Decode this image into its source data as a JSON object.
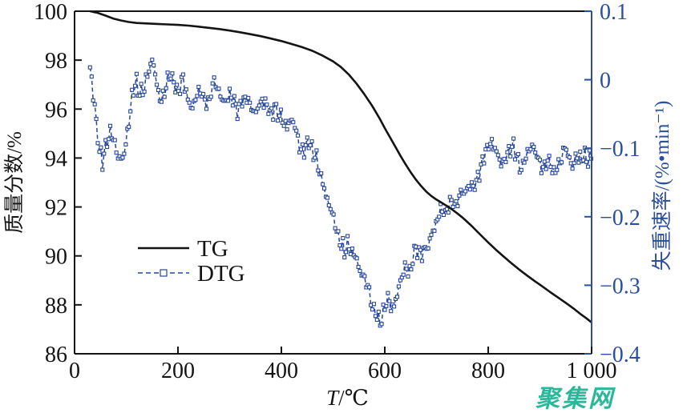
{
  "watermark": {
    "text": "聚集网",
    "color": "#2ab89b"
  },
  "colors": {
    "background": "#ffffff",
    "axis_black": "#141414",
    "axis_blue": "#2b4f9e",
    "tg_line": "#141414",
    "dtg_line": "#27479b",
    "dtg_marker_fill": "#ffffff"
  },
  "legend": {
    "entries": [
      {
        "label": "TG",
        "series": "tg"
      },
      {
        "label": "DTG",
        "series": "dtg"
      }
    ]
  },
  "chart_data": {
    "type": "line",
    "title": "",
    "xlabel_italic": "T",
    "xlabel_rest": "/℃",
    "ylabel_left": "质量分数/%",
    "ylabel_right": "失重速率/(%•min⁻¹)",
    "grid": false,
    "legend_position": "inside lower-left",
    "xlim": [
      0,
      1000
    ],
    "ylim_left": [
      86,
      100
    ],
    "ylim_right": [
      -0.4,
      0.1
    ],
    "x_ticks": {
      "values": [
        0,
        200,
        400,
        600,
        800,
        1000
      ],
      "labels": [
        "0",
        "200",
        "400",
        "600",
        "800",
        "1 000"
      ]
    },
    "left_ticks": {
      "values": [
        100,
        98,
        96,
        94,
        92,
        90,
        88,
        86
      ],
      "labels": [
        "100",
        "98",
        "96",
        "94",
        "92",
        "90",
        "88",
        "86"
      ]
    },
    "right_ticks": {
      "values": [
        0.1,
        0,
        -0.1,
        -0.2,
        -0.3,
        -0.4
      ],
      "labels": [
        "0.1",
        "0",
        "−0.1",
        "−0.2",
        "−0.3",
        "−0.4"
      ]
    },
    "series": [
      {
        "name": "TG",
        "axis": "left",
        "style": "solid",
        "unit": "%",
        "points": [
          [
            30,
            100
          ],
          [
            45,
            99.93
          ],
          [
            60,
            99.82
          ],
          [
            75,
            99.7
          ],
          [
            90,
            99.62
          ],
          [
            105,
            99.56
          ],
          [
            120,
            99.52
          ],
          [
            140,
            99.5
          ],
          [
            160,
            99.48
          ],
          [
            180,
            99.46
          ],
          [
            200,
            99.44
          ],
          [
            220,
            99.41
          ],
          [
            240,
            99.37
          ],
          [
            260,
            99.32
          ],
          [
            280,
            99.27
          ],
          [
            300,
            99.21
          ],
          [
            320,
            99.14
          ],
          [
            340,
            99.06
          ],
          [
            360,
            98.98
          ],
          [
            380,
            98.88
          ],
          [
            400,
            98.78
          ],
          [
            420,
            98.66
          ],
          [
            440,
            98.53
          ],
          [
            460,
            98.38
          ],
          [
            480,
            98.18
          ],
          [
            500,
            97.95
          ],
          [
            515,
            97.72
          ],
          [
            530,
            97.42
          ],
          [
            545,
            97.05
          ],
          [
            560,
            96.62
          ],
          [
            575,
            96.15
          ],
          [
            590,
            95.62
          ],
          [
            600,
            95.22
          ],
          [
            610,
            94.85
          ],
          [
            620,
            94.48
          ],
          [
            630,
            94.1
          ],
          [
            640,
            93.75
          ],
          [
            650,
            93.42
          ],
          [
            660,
            93.12
          ],
          [
            670,
            92.86
          ],
          [
            680,
            92.63
          ],
          [
            690,
            92.45
          ],
          [
            700,
            92.3
          ],
          [
            710,
            92.17
          ],
          [
            720,
            92.04
          ],
          [
            730,
            91.9
          ],
          [
            740,
            91.74
          ],
          [
            750,
            91.57
          ],
          [
            760,
            91.38
          ],
          [
            770,
            91.18
          ],
          [
            780,
            90.97
          ],
          [
            790,
            90.76
          ],
          [
            800,
            90.55
          ],
          [
            815,
            90.25
          ],
          [
            830,
            89.97
          ],
          [
            845,
            89.7
          ],
          [
            860,
            89.44
          ],
          [
            875,
            89.2
          ],
          [
            890,
            88.97
          ],
          [
            905,
            88.75
          ],
          [
            920,
            88.52
          ],
          [
            935,
            88.3
          ],
          [
            950,
            88.08
          ],
          [
            965,
            87.85
          ],
          [
            980,
            87.6
          ],
          [
            990,
            87.45
          ],
          [
            1000,
            87.28
          ]
        ]
      },
      {
        "name": "DTG",
        "axis": "right",
        "style": "dashed-square",
        "unit": "%/min",
        "noise_amplitude": 0.011,
        "noise_step": 3,
        "points": [
          [
            30,
            0.018
          ],
          [
            36,
            -0.02
          ],
          [
            42,
            -0.065
          ],
          [
            48,
            -0.105
          ],
          [
            54,
            -0.118
          ],
          [
            60,
            -0.1
          ],
          [
            66,
            -0.082
          ],
          [
            72,
            -0.079
          ],
          [
            78,
            -0.095
          ],
          [
            84,
            -0.113
          ],
          [
            90,
            -0.12
          ],
          [
            96,
            -0.108
          ],
          [
            102,
            -0.078
          ],
          [
            108,
            -0.042
          ],
          [
            114,
            -0.012
          ],
          [
            120,
            -0.002
          ],
          [
            126,
            -0.022
          ],
          [
            132,
            -0.015
          ],
          [
            138,
            0.0
          ],
          [
            144,
            0.015
          ],
          [
            150,
            0.028
          ],
          [
            156,
            0.008
          ],
          [
            162,
            -0.018
          ],
          [
            168,
            -0.032
          ],
          [
            174,
            -0.02
          ],
          [
            180,
            0.0
          ],
          [
            186,
            0.008
          ],
          [
            192,
            -0.005
          ],
          [
            198,
            -0.018
          ],
          [
            204,
            -0.015
          ],
          [
            210,
            0.002
          ],
          [
            216,
            -0.018
          ],
          [
            222,
            -0.035
          ],
          [
            228,
            -0.046
          ],
          [
            234,
            -0.03
          ],
          [
            240,
            -0.016
          ],
          [
            246,
            -0.022
          ],
          [
            252,
            -0.032
          ],
          [
            258,
            -0.038
          ],
          [
            264,
            -0.018
          ],
          [
            270,
            -0.002
          ],
          [
            276,
            -0.012
          ],
          [
            282,
            -0.022
          ],
          [
            288,
            -0.032
          ],
          [
            294,
            -0.028
          ],
          [
            300,
            -0.022
          ],
          [
            308,
            -0.035
          ],
          [
            316,
            -0.044
          ],
          [
            324,
            -0.03
          ],
          [
            332,
            -0.027
          ],
          [
            340,
            -0.035
          ],
          [
            348,
            -0.046
          ],
          [
            356,
            -0.035
          ],
          [
            364,
            -0.03
          ],
          [
            372,
            -0.04
          ],
          [
            380,
            -0.052
          ],
          [
            388,
            -0.044
          ],
          [
            396,
            -0.052
          ],
          [
            404,
            -0.062
          ],
          [
            412,
            -0.068
          ],
          [
            420,
            -0.058
          ],
          [
            428,
            -0.075
          ],
          [
            436,
            -0.098
          ],
          [
            444,
            -0.108
          ],
          [
            452,
            -0.092
          ],
          [
            460,
            -0.105
          ],
          [
            468,
            -0.115
          ],
          [
            476,
            -0.14
          ],
          [
            484,
            -0.163
          ],
          [
            492,
            -0.18
          ],
          [
            500,
            -0.2
          ],
          [
            508,
            -0.222
          ],
          [
            516,
            -0.243
          ],
          [
            524,
            -0.25
          ],
          [
            530,
            -0.236
          ],
          [
            536,
            -0.25
          ],
          [
            544,
            -0.26
          ],
          [
            552,
            -0.277
          ],
          [
            560,
            -0.292
          ],
          [
            568,
            -0.305
          ],
          [
            576,
            -0.328
          ],
          [
            584,
            -0.345
          ],
          [
            592,
            -0.356
          ],
          [
            598,
            -0.338
          ],
          [
            604,
            -0.318
          ],
          [
            610,
            -0.33
          ],
          [
            616,
            -0.333
          ],
          [
            622,
            -0.318
          ],
          [
            628,
            -0.3
          ],
          [
            634,
            -0.285
          ],
          [
            640,
            -0.273
          ],
          [
            646,
            -0.285
          ],
          [
            652,
            -0.27
          ],
          [
            658,
            -0.252
          ],
          [
            664,
            -0.245
          ],
          [
            670,
            -0.254
          ],
          [
            676,
            -0.252
          ],
          [
            682,
            -0.245
          ],
          [
            688,
            -0.235
          ],
          [
            694,
            -0.22
          ],
          [
            700,
            -0.205
          ],
          [
            706,
            -0.193
          ],
          [
            712,
            -0.19
          ],
          [
            718,
            -0.198
          ],
          [
            724,
            -0.182
          ],
          [
            730,
            -0.175
          ],
          [
            736,
            -0.186
          ],
          [
            742,
            -0.175
          ],
          [
            748,
            -0.165
          ],
          [
            754,
            -0.17
          ],
          [
            760,
            -0.155
          ],
          [
            766,
            -0.15
          ],
          [
            772,
            -0.16
          ],
          [
            778,
            -0.145
          ],
          [
            784,
            -0.133
          ],
          [
            790,
            -0.122
          ],
          [
            796,
            -0.105
          ],
          [
            802,
            -0.095
          ],
          [
            808,
            -0.09
          ],
          [
            814,
            -0.1
          ],
          [
            820,
            -0.115
          ],
          [
            826,
            -0.128
          ],
          [
            832,
            -0.115
          ],
          [
            838,
            -0.105
          ],
          [
            844,
            -0.1
          ],
          [
            850,
            -0.098
          ],
          [
            856,
            -0.112
          ],
          [
            862,
            -0.128
          ],
          [
            868,
            -0.122
          ],
          [
            874,
            -0.11
          ],
          [
            880,
            -0.102
          ],
          [
            886,
            -0.098
          ],
          [
            892,
            -0.105
          ],
          [
            898,
            -0.115
          ],
          [
            904,
            -0.133
          ],
          [
            910,
            -0.128
          ],
          [
            916,
            -0.12
          ],
          [
            922,
            -0.124
          ],
          [
            928,
            -0.138
          ],
          [
            934,
            -0.128
          ],
          [
            940,
            -0.115
          ],
          [
            946,
            -0.105
          ],
          [
            952,
            -0.1
          ],
          [
            958,
            -0.118
          ],
          [
            964,
            -0.126
          ],
          [
            970,
            -0.112
          ],
          [
            976,
            -0.117
          ],
          [
            982,
            -0.108
          ],
          [
            988,
            -0.112
          ],
          [
            994,
            -0.118
          ],
          [
            1000,
            -0.115
          ]
        ]
      }
    ]
  }
}
